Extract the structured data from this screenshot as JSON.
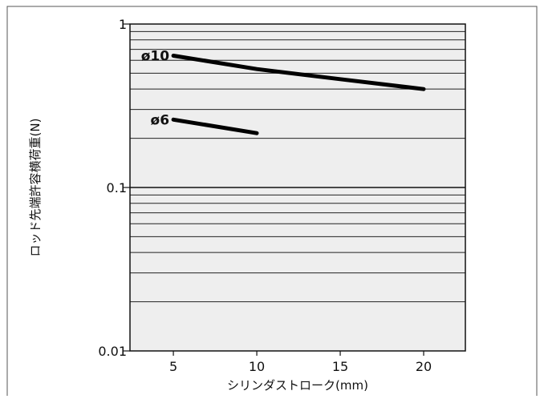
{
  "chart_data": {
    "type": "line",
    "xlabel": "シリンダストローク(mm)",
    "ylabel": "ロッド先端許容横荷重(N)",
    "x_ticks": [
      5,
      10,
      15,
      20
    ],
    "xlim": [
      2.4,
      22.5
    ],
    "y_scale": "log",
    "ylim": [
      0.01,
      1
    ],
    "y_ticks": [
      0.01,
      0.1,
      1
    ],
    "y_tick_labels": [
      "0.01",
      "0.1",
      "1"
    ],
    "grid": "horizontal",
    "grid_values": [
      0.02,
      0.03,
      0.04,
      0.05,
      0.06,
      0.07,
      0.08,
      0.09,
      0.2,
      0.3,
      0.4,
      0.5,
      0.6,
      0.7,
      0.8,
      0.9
    ],
    "series": [
      {
        "name": "ø10",
        "x": [
          5,
          10,
          15,
          20
        ],
        "y": [
          0.64,
          0.53,
          0.46,
          0.4
        ]
      },
      {
        "name": "ø6",
        "x": [
          5,
          10
        ],
        "y": [
          0.26,
          0.215
        ]
      }
    ]
  }
}
